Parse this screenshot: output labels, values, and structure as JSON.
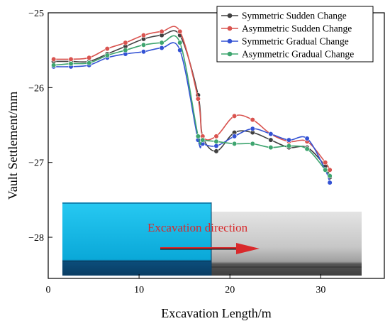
{
  "chart_data": {
    "type": "line",
    "title": "",
    "xlabel": "Excavation Length/m",
    "ylabel": "Vault Settlement/mm",
    "xlim": [
      0,
      37
    ],
    "ylim": [
      -28.55,
      -25.0
    ],
    "xticks": [
      0,
      10,
      20,
      30
    ],
    "yticks": [
      -25,
      -26,
      -27,
      -28
    ],
    "grid": false,
    "legend_position": "top-right",
    "annotation": "Excavation direction",
    "series": [
      {
        "name": "Symmetric Sudden Change",
        "color": "#404040",
        "x": [
          0.6,
          2.5,
          4.5,
          6.5,
          8.5,
          10.5,
          12.5,
          14.5,
          16.5,
          17,
          18.5,
          20.5,
          22.5,
          24.5,
          26.5,
          28.5,
          30.5,
          31
        ],
        "y": [
          -25.65,
          -25.65,
          -25.65,
          -25.55,
          -25.45,
          -25.35,
          -25.3,
          -25.3,
          -26.1,
          -26.65,
          -26.85,
          -26.6,
          -26.6,
          -26.7,
          -26.8,
          -26.8,
          -27.05,
          -27.2
        ]
      },
      {
        "name": "Asymmetric Sudden Change",
        "color": "#d9534f",
        "x": [
          0.6,
          2.5,
          4.5,
          6.5,
          8.5,
          10.5,
          12.5,
          14.5,
          16.5,
          17,
          18.5,
          20.5,
          22.5,
          24.5,
          26.5,
          28.5,
          30.5,
          31
        ],
        "y": [
          -25.62,
          -25.62,
          -25.6,
          -25.48,
          -25.4,
          -25.3,
          -25.25,
          -25.25,
          -26.15,
          -26.65,
          -26.65,
          -26.38,
          -26.43,
          -26.62,
          -26.72,
          -26.72,
          -27.0,
          -27.1
        ]
      },
      {
        "name": "Symmetric Gradual Change",
        "color": "#3352d4",
        "x": [
          0.6,
          2.5,
          4.5,
          6.5,
          8.5,
          10.5,
          12.5,
          14.5,
          16.5,
          17,
          18.5,
          20.5,
          22.5,
          24.5,
          26.5,
          28.5,
          30.5,
          31
        ],
        "y": [
          -25.72,
          -25.72,
          -25.7,
          -25.6,
          -25.55,
          -25.52,
          -25.47,
          -25.5,
          -26.7,
          -26.75,
          -26.78,
          -26.65,
          -26.55,
          -26.62,
          -26.7,
          -26.68,
          -27.1,
          -27.27
        ]
      },
      {
        "name": "Asymmetric Gradual Change",
        "color": "#3ea56f",
        "x": [
          0.6,
          2.5,
          4.5,
          6.5,
          8.5,
          10.5,
          12.5,
          14.5,
          16.5,
          17,
          18.5,
          20.5,
          22.5,
          24.5,
          26.5,
          28.5,
          30.5,
          31
        ],
        "y": [
          -25.7,
          -25.68,
          -25.67,
          -25.57,
          -25.5,
          -25.43,
          -25.4,
          -25.4,
          -26.65,
          -26.7,
          -26.72,
          -26.75,
          -26.75,
          -26.8,
          -26.78,
          -26.82,
          -27.1,
          -27.18
        ]
      }
    ]
  }
}
